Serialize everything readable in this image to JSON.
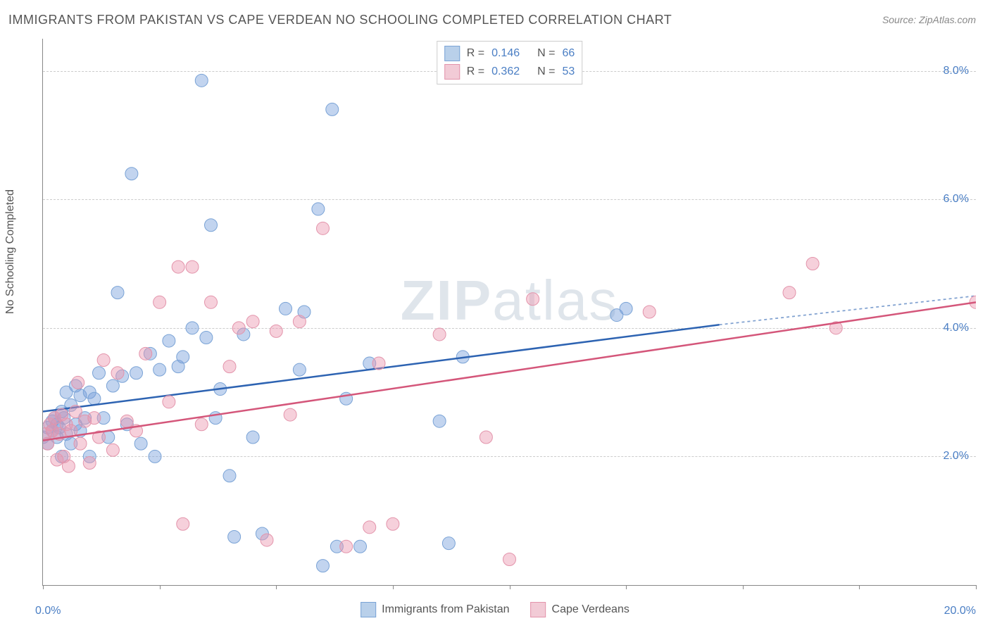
{
  "title": "IMMIGRANTS FROM PAKISTAN VS CAPE VERDEAN NO SCHOOLING COMPLETED CORRELATION CHART",
  "source": "Source: ZipAtlas.com",
  "y_axis_label": "No Schooling Completed",
  "watermark": "ZIPatlas",
  "chart": {
    "type": "scatter",
    "xlim": [
      0,
      20
    ],
    "ylim": [
      0,
      8.5
    ],
    "x_ticks": [
      0,
      2.5,
      5,
      7.5,
      10,
      12.5,
      15,
      17.5,
      20
    ],
    "x_tick_labels": {
      "0": "0.0%",
      "20": "20.0%"
    },
    "y_gridlines": [
      2,
      4,
      6,
      8
    ],
    "y_tick_labels": {
      "2": "2.0%",
      "4": "4.0%",
      "6": "6.0%",
      "8": "8.0%"
    },
    "background_color": "#ffffff",
    "grid_color": "#cccccc",
    "axis_color": "#888888",
    "series": [
      {
        "name": "Immigrants from Pakistan",
        "color_fill": "rgba(120,160,220,0.45)",
        "color_stroke": "#7aa3d6",
        "swatch_fill": "#b9d0ea",
        "swatch_border": "#7aa3d6",
        "R": "0.146",
        "N": "66",
        "marker_radius": 9,
        "trend": {
          "x1": 0,
          "y1": 2.7,
          "x2": 14.5,
          "y2": 4.05,
          "x2_ext": 20,
          "y2_ext": 4.5,
          "color": "#2d63b2",
          "width": 2.5
        },
        "points": [
          [
            0.0,
            2.3
          ],
          [
            0.1,
            2.45
          ],
          [
            0.1,
            2.2
          ],
          [
            0.2,
            2.4
          ],
          [
            0.2,
            2.55
          ],
          [
            0.25,
            2.6
          ],
          [
            0.3,
            2.3
          ],
          [
            0.3,
            2.5
          ],
          [
            0.35,
            2.45
          ],
          [
            0.4,
            2.7
          ],
          [
            0.4,
            2.0
          ],
          [
            0.45,
            2.6
          ],
          [
            0.5,
            2.35
          ],
          [
            0.5,
            3.0
          ],
          [
            0.6,
            2.2
          ],
          [
            0.6,
            2.8
          ],
          [
            0.7,
            2.5
          ],
          [
            0.7,
            3.1
          ],
          [
            0.8,
            2.95
          ],
          [
            0.8,
            2.4
          ],
          [
            0.9,
            2.6
          ],
          [
            1.0,
            3.0
          ],
          [
            1.0,
            2.0
          ],
          [
            1.1,
            2.9
          ],
          [
            1.2,
            3.3
          ],
          [
            1.3,
            2.6
          ],
          [
            1.4,
            2.3
          ],
          [
            1.5,
            3.1
          ],
          [
            1.6,
            4.55
          ],
          [
            1.7,
            3.25
          ],
          [
            1.8,
            2.5
          ],
          [
            1.9,
            6.4
          ],
          [
            2.0,
            3.3
          ],
          [
            2.1,
            2.2
          ],
          [
            2.3,
            3.6
          ],
          [
            2.4,
            2.0
          ],
          [
            2.5,
            3.35
          ],
          [
            2.7,
            3.8
          ],
          [
            2.9,
            3.4
          ],
          [
            3.0,
            3.55
          ],
          [
            3.2,
            4.0
          ],
          [
            3.4,
            7.85
          ],
          [
            3.5,
            3.85
          ],
          [
            3.6,
            5.6
          ],
          [
            3.7,
            2.6
          ],
          [
            3.8,
            3.05
          ],
          [
            4.0,
            1.7
          ],
          [
            4.1,
            0.75
          ],
          [
            4.3,
            3.9
          ],
          [
            4.5,
            2.3
          ],
          [
            4.7,
            0.8
          ],
          [
            5.2,
            4.3
          ],
          [
            5.5,
            3.35
          ],
          [
            5.6,
            4.25
          ],
          [
            5.9,
            5.85
          ],
          [
            6.0,
            0.3
          ],
          [
            6.2,
            7.4
          ],
          [
            6.3,
            0.6
          ],
          [
            6.5,
            2.9
          ],
          [
            6.8,
            0.6
          ],
          [
            7.0,
            3.45
          ],
          [
            8.5,
            2.55
          ],
          [
            8.7,
            0.65
          ],
          [
            9.0,
            3.55
          ],
          [
            12.3,
            4.2
          ],
          [
            12.5,
            4.3
          ]
        ]
      },
      {
        "name": "Cape Verdeans",
        "color_fill": "rgba(235,150,175,0.45)",
        "color_stroke": "#e394ab",
        "swatch_fill": "#f2cbd6",
        "swatch_border": "#e394ab",
        "R": "0.362",
        "N": "53",
        "marker_radius": 9,
        "trend": {
          "x1": 0,
          "y1": 2.25,
          "x2": 20,
          "y2": 4.4,
          "color": "#d4567a",
          "width": 2.5
        },
        "points": [
          [
            0.05,
            2.35
          ],
          [
            0.1,
            2.2
          ],
          [
            0.15,
            2.5
          ],
          [
            0.2,
            2.4
          ],
          [
            0.25,
            2.6
          ],
          [
            0.3,
            1.95
          ],
          [
            0.35,
            2.35
          ],
          [
            0.4,
            2.65
          ],
          [
            0.45,
            2.0
          ],
          [
            0.5,
            2.5
          ],
          [
            0.55,
            1.85
          ],
          [
            0.6,
            2.4
          ],
          [
            0.7,
            2.7
          ],
          [
            0.75,
            3.15
          ],
          [
            0.8,
            2.2
          ],
          [
            0.9,
            2.55
          ],
          [
            1.0,
            1.9
          ],
          [
            1.1,
            2.6
          ],
          [
            1.2,
            2.3
          ],
          [
            1.3,
            3.5
          ],
          [
            1.5,
            2.1
          ],
          [
            1.6,
            3.3
          ],
          [
            1.8,
            2.55
          ],
          [
            2.0,
            2.4
          ],
          [
            2.2,
            3.6
          ],
          [
            2.5,
            4.4
          ],
          [
            2.7,
            2.85
          ],
          [
            2.9,
            4.95
          ],
          [
            3.0,
            0.95
          ],
          [
            3.2,
            4.95
          ],
          [
            3.4,
            2.5
          ],
          [
            3.6,
            4.4
          ],
          [
            4.0,
            3.4
          ],
          [
            4.2,
            4.0
          ],
          [
            4.5,
            4.1
          ],
          [
            4.8,
            0.7
          ],
          [
            5.0,
            3.95
          ],
          [
            5.3,
            2.65
          ],
          [
            5.5,
            4.1
          ],
          [
            6.0,
            5.55
          ],
          [
            6.5,
            0.6
          ],
          [
            7.0,
            0.9
          ],
          [
            7.2,
            3.45
          ],
          [
            7.5,
            0.95
          ],
          [
            8.5,
            3.9
          ],
          [
            9.5,
            2.3
          ],
          [
            10.0,
            0.4
          ],
          [
            10.5,
            4.45
          ],
          [
            13.0,
            4.25
          ],
          [
            16.0,
            4.55
          ],
          [
            16.5,
            5.0
          ],
          [
            17.0,
            4.0
          ],
          [
            20.0,
            4.4
          ]
        ]
      }
    ]
  },
  "legend_labels": {
    "R_prefix": "R = ",
    "N_prefix": "N = "
  }
}
